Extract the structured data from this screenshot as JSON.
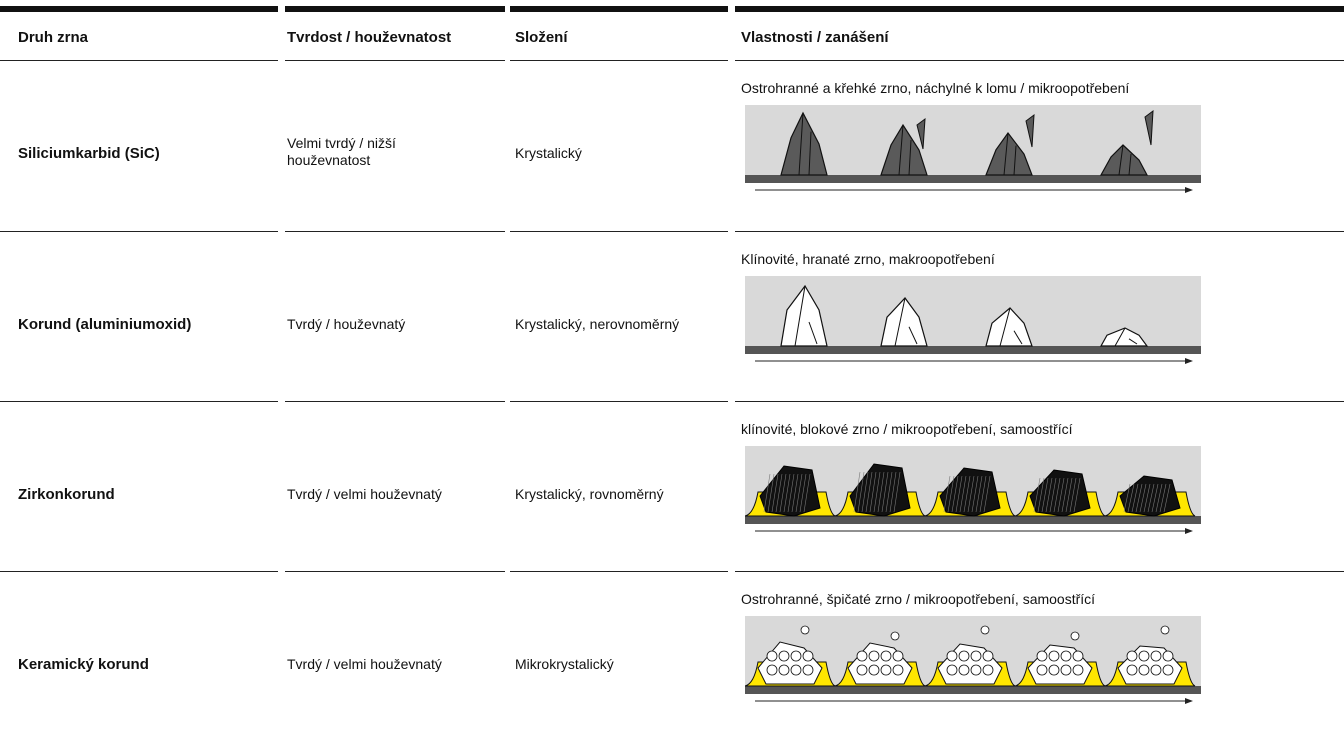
{
  "table": {
    "header": [
      "Druh zrna",
      "Tvrdost / houževnatost",
      "Složení",
      "Vlastnosti / zanášení"
    ],
    "rows": [
      [
        "Siliciumkarbid (SiC)",
        "Velmi tvrdý / nižší houževnatost",
        "Krystalický",
        "Ostrohranné a křehké zrno, náchylné k lomu / mikroopotřebení"
      ],
      [
        "Korund (aluminiumoxid)",
        "Tvrdý / houževnatý",
        "Krystalický, nerovnoměrný",
        "Klínovité, hranaté zrno, makroopotřebení"
      ],
      [
        "Zirkonkorund",
        "Tvrdý / velmi houževnatý",
        "Krystalický, rovnoměrný",
        "klínovité, blokové zrno / mikroopotřebení, samoostřící"
      ],
      [
        "Keramický korund",
        "Tvrdý / velmi houževnatý",
        "Mikrokrystalický",
        "Ostrohranné, špičaté zrno / mikroopotřebení, samoostřící"
      ]
    ]
  }
}
